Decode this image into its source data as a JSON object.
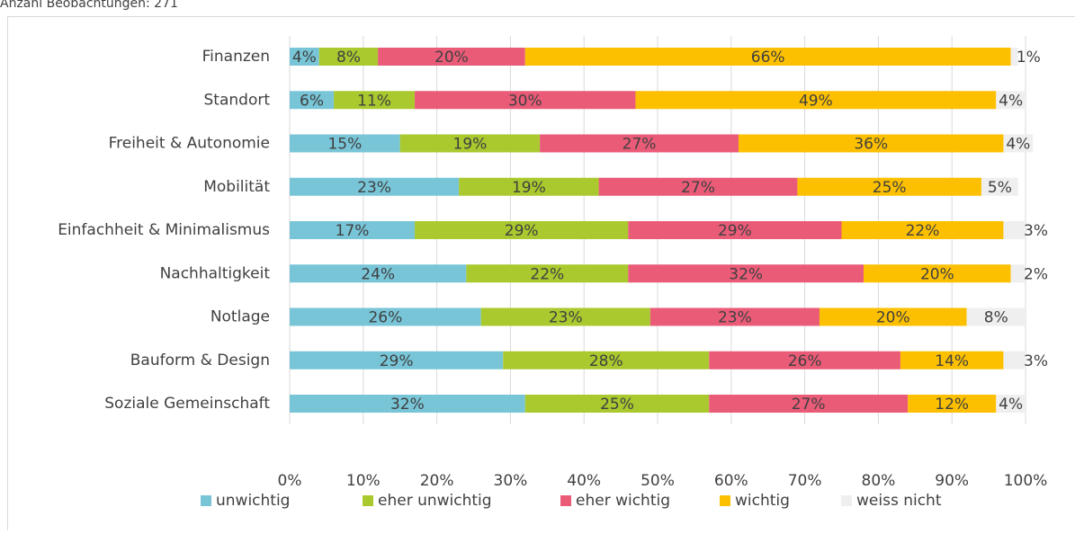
{
  "chart_data": {
    "type": "stacked_bar_horizontal",
    "title": "Anzahl Beobachtungen: 271",
    "categories": [
      "Finanzen",
      "Standort",
      "Freiheit & Autonomie",
      "Mobilität",
      "Einfachheit & Minimalismus",
      "Nachhaltigkeit",
      "Notlage",
      "Bauform & Design",
      "Soziale Gemeinschaft"
    ],
    "series": [
      {
        "name": "unwichtig",
        "color": "#78c5d8",
        "values": [
          4,
          6,
          15,
          23,
          17,
          24,
          26,
          29,
          32
        ],
        "value_labels": [
          "4%",
          "6%",
          "15%",
          "23%",
          "17%",
          "24%",
          "26%",
          "29%",
          "32%"
        ]
      },
      {
        "name": "eher unwichtig",
        "color": "#a9c92e",
        "values": [
          8,
          11,
          19,
          19,
          29,
          22,
          23,
          28,
          25
        ],
        "value_labels": [
          "8%",
          "11%",
          "19%",
          "19%",
          "29%",
          "22%",
          "23%",
          "28%",
          "25%"
        ]
      },
      {
        "name": "eher wichtig",
        "color": "#ea5b78",
        "values": [
          20,
          30,
          27,
          27,
          29,
          32,
          23,
          26,
          27
        ],
        "value_labels": [
          "20%",
          "30%",
          "27%",
          "27%",
          "29%",
          "32%",
          "23%",
          "26%",
          "27%"
        ]
      },
      {
        "name": "wichtig",
        "color": "#fcc000",
        "values": [
          66,
          49,
          36,
          25,
          22,
          20,
          20,
          14,
          12
        ],
        "value_labels": [
          "66%",
          "49%",
          "36%",
          "25%",
          "22%",
          "20%",
          "20%",
          "14%",
          "12%"
        ]
      },
      {
        "name": "weiss nicht",
        "color": "#efefef",
        "values": [
          1,
          4,
          4,
          5,
          3,
          2,
          8,
          3,
          4
        ],
        "value_labels": [
          "1%",
          "4%",
          "4%",
          "5%",
          "3%",
          "2%",
          "8%",
          "3%",
          "4%"
        ]
      }
    ],
    "xlim": [
      0,
      100
    ],
    "xticks": [
      {
        "value": 0,
        "label": "0%"
      },
      {
        "value": 10,
        "label": "10%"
      },
      {
        "value": 20,
        "label": "20%"
      },
      {
        "value": 30,
        "label": "30%"
      },
      {
        "value": 40,
        "label": "40%"
      },
      {
        "value": 50,
        "label": "50%"
      },
      {
        "value": 60,
        "label": "60%"
      },
      {
        "value": 70,
        "label": "70%"
      },
      {
        "value": 80,
        "label": "80%"
      },
      {
        "value": 90,
        "label": "90%"
      },
      {
        "value": 100,
        "label": "100%"
      }
    ],
    "grid": true,
    "legend": "bottom"
  }
}
